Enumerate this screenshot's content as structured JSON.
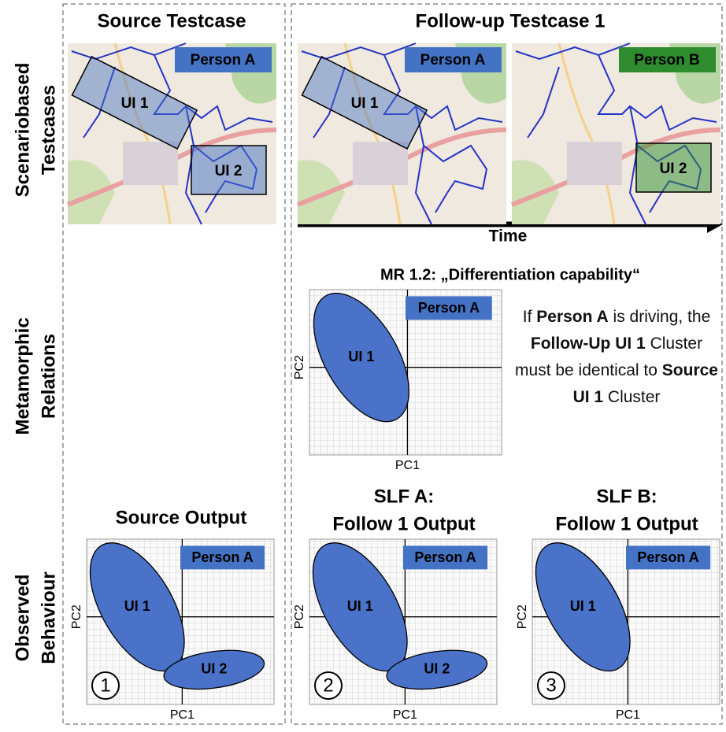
{
  "columns": {
    "source": "Source Testcase",
    "followup": "Follow-up Testcase 1"
  },
  "rows": [
    {
      "lines": [
        "Scenariobased",
        "Testcases"
      ]
    },
    {
      "lines": [
        "Metamorphic",
        "Relations"
      ]
    },
    {
      "lines": [
        "Observed",
        "Behaviour"
      ]
    }
  ],
  "maps": [
    {
      "person": "Person A",
      "color": "#4472c4",
      "zones": [
        "UI 1",
        "UI 2"
      ]
    },
    {
      "person": "Person A",
      "color": "#4472c4",
      "zones": [
        "UI 1"
      ]
    },
    {
      "person": "Person B",
      "color": "#2e8b2e",
      "zones": [
        "UI 2"
      ]
    }
  ],
  "time_label": "Time",
  "axes": {
    "x": "PC1",
    "y": "PC2"
  },
  "mr": {
    "title": "MR 1.2: „Differentiation capability“",
    "plot": {
      "person": "Person A",
      "clusters": [
        "UI 1"
      ]
    },
    "statement": [
      {
        "text": "If "
      },
      {
        "text": "Person A",
        "bold": true
      },
      {
        "text": " is driving, the "
      },
      {
        "text": "Follow-Up UI 1",
        "bold": true
      },
      {
        "text": " Cluster must be identical to "
      },
      {
        "text": "Source UI 1",
        "bold": true
      },
      {
        "text": " Cluster"
      }
    ]
  },
  "outputs": [
    {
      "title": [
        "Source Output"
      ],
      "person": "Person A",
      "clusters": [
        "UI 1",
        "UI 2"
      ],
      "number": "1"
    },
    {
      "title": [
        "SLF A:",
        "Follow 1 Output"
      ],
      "person": "Person A",
      "clusters": [
        "UI 1",
        "UI 2"
      ],
      "number": "2"
    },
    {
      "title": [
        "SLF B:",
        "Follow 1 Output"
      ],
      "person": "Person A",
      "clusters": [
        "UI 1"
      ],
      "number": "3"
    }
  ]
}
